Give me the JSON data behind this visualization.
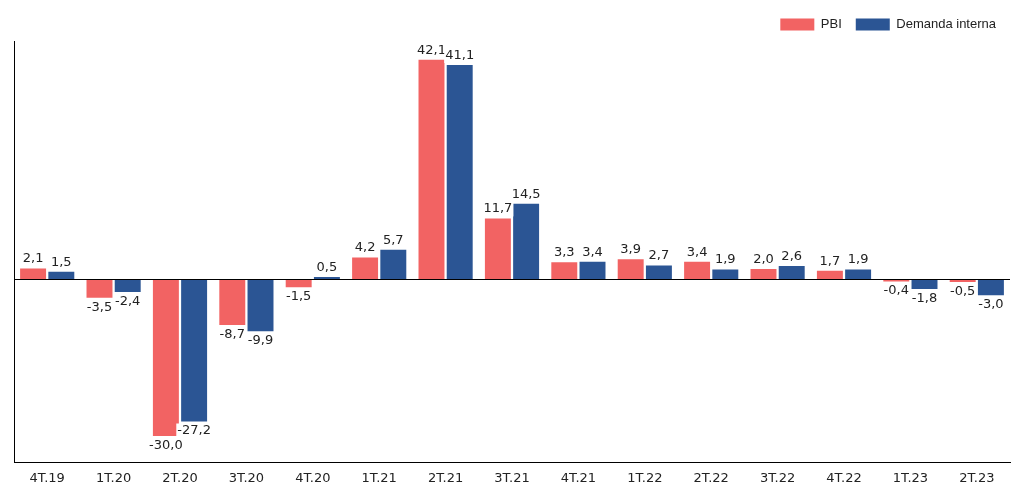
{
  "chart_data": {
    "type": "bar",
    "categories": [
      "4T.19",
      "1T.20",
      "2T.20",
      "3T.20",
      "4T.20",
      "1T.21",
      "2T.21",
      "3T.21",
      "4T.21",
      "1T.22",
      "2T.22",
      "3T.22",
      "4T.22",
      "1T.23",
      "2T.23"
    ],
    "series": [
      {
        "name": "PBI",
        "color": "#f26363",
        "values": [
          2.1,
          -3.5,
          -30.0,
          -8.7,
          -1.5,
          4.2,
          42.1,
          11.7,
          3.3,
          3.9,
          3.4,
          2.0,
          1.7,
          -0.4,
          -0.5
        ],
        "value_labels": [
          "2,1",
          "-3,5",
          "-30,0",
          "-8,7",
          "-1,5",
          "4,2",
          "42,1",
          "11,7",
          "3,3",
          "3,9",
          "3,4",
          "2,0",
          "1,7",
          "-0,4",
          "-0,5"
        ]
      },
      {
        "name": "Demanda interna",
        "color": "#2b5594",
        "values": [
          1.5,
          -2.4,
          -27.2,
          -9.9,
          0.5,
          5.7,
          41.1,
          14.5,
          3.4,
          2.7,
          1.9,
          2.6,
          1.9,
          -1.8,
          -3.0
        ],
        "value_labels": [
          "1,5",
          "-2,4",
          "-27,2",
          "-9,9",
          "0,5",
          "5,7",
          "41,1",
          "14,5",
          "3,4",
          "2,7",
          "1,9",
          "2,6",
          "1,9",
          "-1,8",
          "-3,0"
        ]
      }
    ],
    "legend": "top right",
    "grid": false
  }
}
